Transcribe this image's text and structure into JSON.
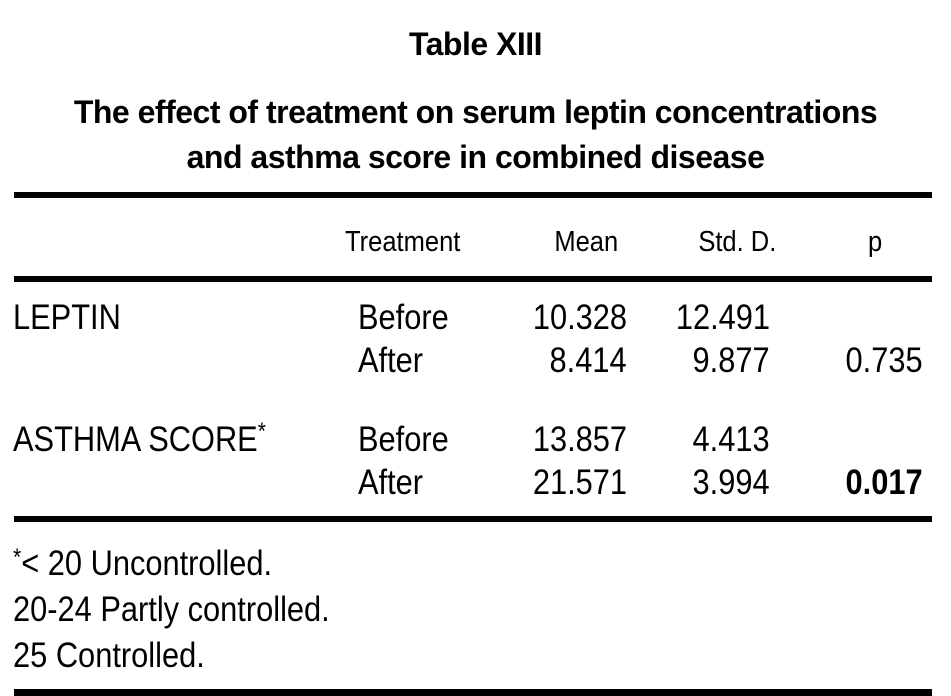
{
  "title": "Table XIII",
  "subtitle_line1": "The effect of treatment on serum leptin concentrations",
  "subtitle_line2": "and asthma score in combined disease",
  "table": {
    "headers": {
      "treatment": "Treatment",
      "mean": "Mean",
      "std": "Std. D.",
      "p": "p"
    },
    "rows": [
      {
        "label": "LEPTIN",
        "label_sup": "",
        "treatment": "Before",
        "mean": "10.328",
        "std": "12.491",
        "p": ""
      },
      {
        "label": "",
        "label_sup": "",
        "treatment": "After",
        "mean": "8.414",
        "std": "9.877",
        "p": "0.735"
      },
      {
        "label": "ASTHMA SCORE",
        "label_sup": "*",
        "treatment": "Before",
        "mean": "13.857",
        "std": "4.413",
        "p": ""
      },
      {
        "label": "",
        "label_sup": "",
        "treatment": "After",
        "mean": "21.571",
        "std": "3.994",
        "p": "0.017"
      }
    ]
  },
  "footnotes": [
    {
      "sup": "*",
      "text": "< 20 Uncontrolled."
    },
    {
      "sup": "",
      "text": "20-24 Partly controlled."
    },
    {
      "sup": "",
      "text": "25 Controlled."
    }
  ],
  "colors": {
    "text": "#000000",
    "background": "#ffffff",
    "rule": "#000000"
  }
}
